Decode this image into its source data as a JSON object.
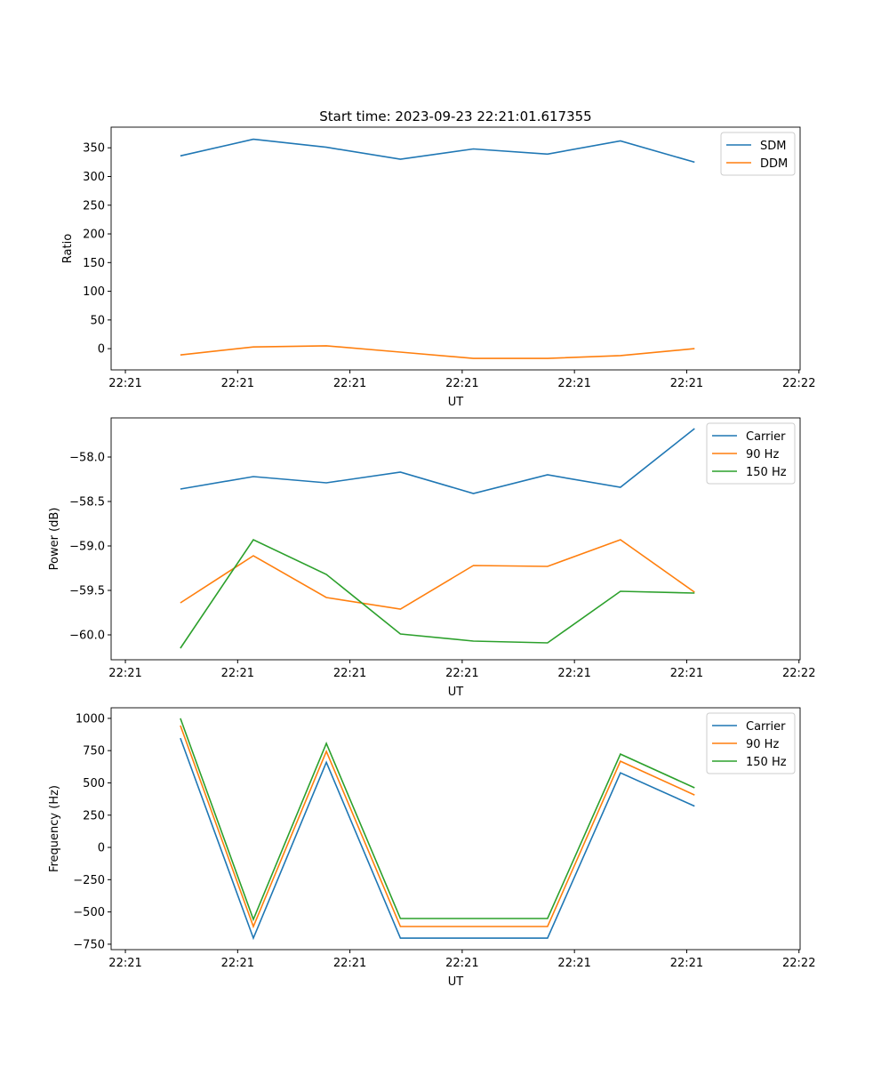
{
  "chart_data": [
    {
      "type": "line",
      "title": "Start time: 2023-09-23 22:21:01.617355",
      "xlabel": "UT",
      "ylabel": "Ratio",
      "x": [
        4.9,
        11.4,
        17.9,
        24.5,
        31.0,
        37.6,
        44.1,
        50.7
      ],
      "xlim": [
        -1.27,
        60.1
      ],
      "xticks": [
        0,
        10,
        20,
        30,
        40,
        50,
        60
      ],
      "xticklabels": [
        "22:21",
        "22:21",
        "22:21",
        "22:21",
        "22:21",
        "22:21",
        "22:22"
      ],
      "ylim": [
        -37,
        386
      ],
      "yticks": [
        0,
        50,
        100,
        150,
        200,
        250,
        300,
        350
      ],
      "yticklabels": [
        "0",
        "50",
        "100",
        "150",
        "200",
        "250",
        "300",
        "350"
      ],
      "legend": "top-right",
      "grid": false,
      "series": [
        {
          "name": "SDM",
          "color": "#1f77b4",
          "values": [
            336,
            365,
            351,
            330,
            348,
            339,
            362,
            325
          ]
        },
        {
          "name": "DDM",
          "color": "#ff7f0e",
          "values": [
            -11,
            3,
            5,
            -6,
            -17,
            -17,
            -12,
            0
          ]
        }
      ]
    },
    {
      "type": "line",
      "title": "",
      "xlabel": "UT",
      "ylabel": "Power (dB)",
      "x": [
        4.9,
        11.4,
        17.9,
        24.5,
        31.0,
        37.6,
        44.1,
        50.7
      ],
      "xlim": [
        -1.27,
        60.1
      ],
      "xticks": [
        0,
        10,
        20,
        30,
        40,
        50,
        60
      ],
      "xticklabels": [
        "22:21",
        "22:21",
        "22:21",
        "22:21",
        "22:21",
        "22:21",
        "22:22"
      ],
      "ylim": [
        -60.28,
        -57.56
      ],
      "yticks": [
        -60,
        -59.5,
        -59,
        -58.5,
        -58
      ],
      "yticklabels": [
        "−60.0",
        "−59.5",
        "−59.0",
        "−58.5",
        "−58.0"
      ],
      "legend": "top-right",
      "grid": false,
      "series": [
        {
          "name": "Carrier",
          "color": "#1f77b4",
          "values": [
            -58.36,
            -58.22,
            -58.29,
            -58.17,
            -58.41,
            -58.2,
            -58.34,
            -57.68
          ]
        },
        {
          "name": "90 Hz",
          "color": "#ff7f0e",
          "values": [
            -59.64,
            -59.11,
            -59.58,
            -59.71,
            -59.22,
            -59.23,
            -58.93,
            -59.52
          ]
        },
        {
          "name": "150 Hz",
          "color": "#2ca02c",
          "values": [
            -60.15,
            -58.93,
            -59.32,
            -59.99,
            -60.07,
            -60.09,
            -59.51,
            -59.53
          ]
        }
      ]
    },
    {
      "type": "line",
      "title": "",
      "xlabel": "UT",
      "ylabel": "Frequency (Hz)",
      "x": [
        4.9,
        11.4,
        17.9,
        24.5,
        31.0,
        37.6,
        44.1,
        50.7
      ],
      "xlim": [
        -1.27,
        60.1
      ],
      "xticks": [
        0,
        10,
        20,
        30,
        40,
        50,
        60
      ],
      "xticklabels": [
        "22:21",
        "22:21",
        "22:21",
        "22:21",
        "22:21",
        "22:21",
        "22:22"
      ],
      "ylim": [
        -792,
        1082
      ],
      "yticks": [
        -750,
        -500,
        -250,
        0,
        250,
        500,
        750,
        1000
      ],
      "yticklabels": [
        "−750",
        "−500",
        "−250",
        "0",
        "250",
        "500",
        "750",
        "1000"
      ],
      "legend": "top-right",
      "grid": false,
      "series": [
        {
          "name": "Carrier",
          "color": "#1f77b4",
          "values": [
            847,
            -703,
            660,
            -703,
            -703,
            -703,
            578,
            320
          ]
        },
        {
          "name": "90 Hz",
          "color": "#ff7f0e",
          "values": [
            944,
            -613,
            744,
            -613,
            -613,
            -613,
            668,
            406
          ]
        },
        {
          "name": "150 Hz",
          "color": "#2ca02c",
          "values": [
            1000,
            -558,
            806,
            -551,
            -551,
            -551,
            723,
            462
          ]
        }
      ]
    }
  ]
}
